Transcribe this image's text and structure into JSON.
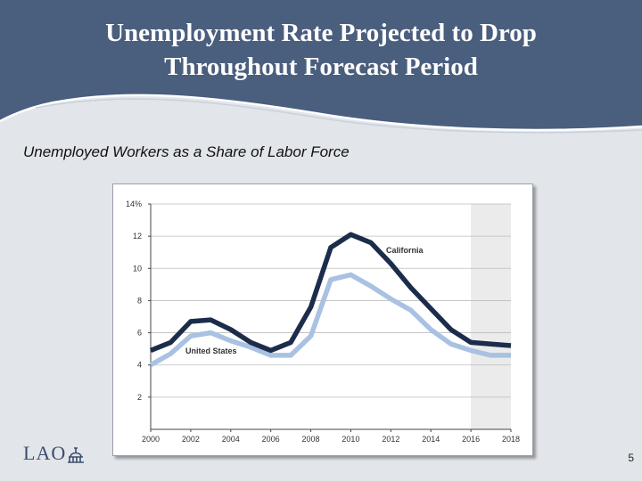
{
  "slide": {
    "title_lines": [
      "Unemployment Rate Projected to Drop",
      "Throughout Forecast Period"
    ],
    "subtitle": "Unemployed Workers as a Share of Labor Force",
    "logo_text": "LAO",
    "page_number": "5"
  },
  "colors": {
    "header": "#4a5e7e",
    "california": "#1c2d4b",
    "united_states": "#a9c1e2",
    "forecast_shade": "#ebebeb",
    "grid": "#bdbdbd"
  },
  "chart_data": {
    "type": "line",
    "title": "",
    "xlabel": "",
    "ylabel": "",
    "xlim": [
      2000,
      2018
    ],
    "ylim": [
      0,
      14
    ],
    "x_ticks": [
      2000,
      2002,
      2004,
      2006,
      2008,
      2010,
      2012,
      2014,
      2016,
      2018
    ],
    "y_ticks": [
      2,
      4,
      6,
      8,
      10,
      12,
      14
    ],
    "y_tick_labels": [
      "2",
      "4",
      "6",
      "8",
      "10",
      "12",
      "14%"
    ],
    "grid": "horizontal",
    "forecast_region": [
      2016,
      2018
    ],
    "series": [
      {
        "name": "California",
        "x": [
          2000,
          2001,
          2002,
          2003,
          2004,
          2005,
          2006,
          2007,
          2008,
          2009,
          2010,
          2011,
          2012,
          2013,
          2014,
          2015,
          2016,
          2017,
          2018
        ],
        "values": [
          4.9,
          5.4,
          6.7,
          6.8,
          6.2,
          5.4,
          4.9,
          5.4,
          7.6,
          11.3,
          12.1,
          11.6,
          10.3,
          8.8,
          7.5,
          6.2,
          5.4,
          5.3,
          5.2
        ]
      },
      {
        "name": "United States",
        "x": [
          2000,
          2001,
          2002,
          2003,
          2004,
          2005,
          2006,
          2007,
          2008,
          2009,
          2010,
          2011,
          2012,
          2013,
          2014,
          2015,
          2016,
          2017,
          2018
        ],
        "values": [
          4.0,
          4.7,
          5.8,
          6.0,
          5.5,
          5.1,
          4.6,
          4.6,
          5.8,
          9.3,
          9.6,
          8.9,
          8.1,
          7.4,
          6.2,
          5.3,
          4.9,
          4.6,
          4.6
        ]
      }
    ]
  }
}
